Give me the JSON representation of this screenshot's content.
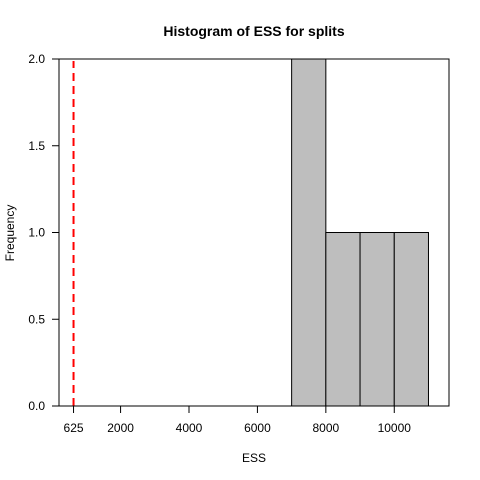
{
  "chart_data": {
    "type": "bar",
    "title": "Histogram of ESS for splits",
    "xlabel": "ESS",
    "ylabel": "Frequency",
    "xlim": [
      200,
      11600
    ],
    "ylim": [
      0,
      2.0
    ],
    "bins": [
      {
        "x0": 7000,
        "x1": 8000,
        "count": 2
      },
      {
        "x0": 8000,
        "x1": 9000,
        "count": 1
      },
      {
        "x0": 9000,
        "x1": 10000,
        "count": 1
      },
      {
        "x0": 10000,
        "x1": 11000,
        "count": 1
      }
    ],
    "xticks": [
      625,
      2000,
      4000,
      6000,
      8000,
      10000
    ],
    "xtick_labels": [
      "625",
      "2000",
      "4000",
      "6000",
      "8000",
      "10000"
    ],
    "yticks": [
      0.0,
      0.5,
      1.0,
      1.5,
      2.0
    ],
    "ytick_labels": [
      "0.0",
      "0.5",
      "1.0",
      "1.5",
      "2.0"
    ],
    "reference_line": {
      "x": 625,
      "color": "#ff0000",
      "style": "dashed"
    },
    "bar_color": "#bebebe",
    "grid": false
  }
}
